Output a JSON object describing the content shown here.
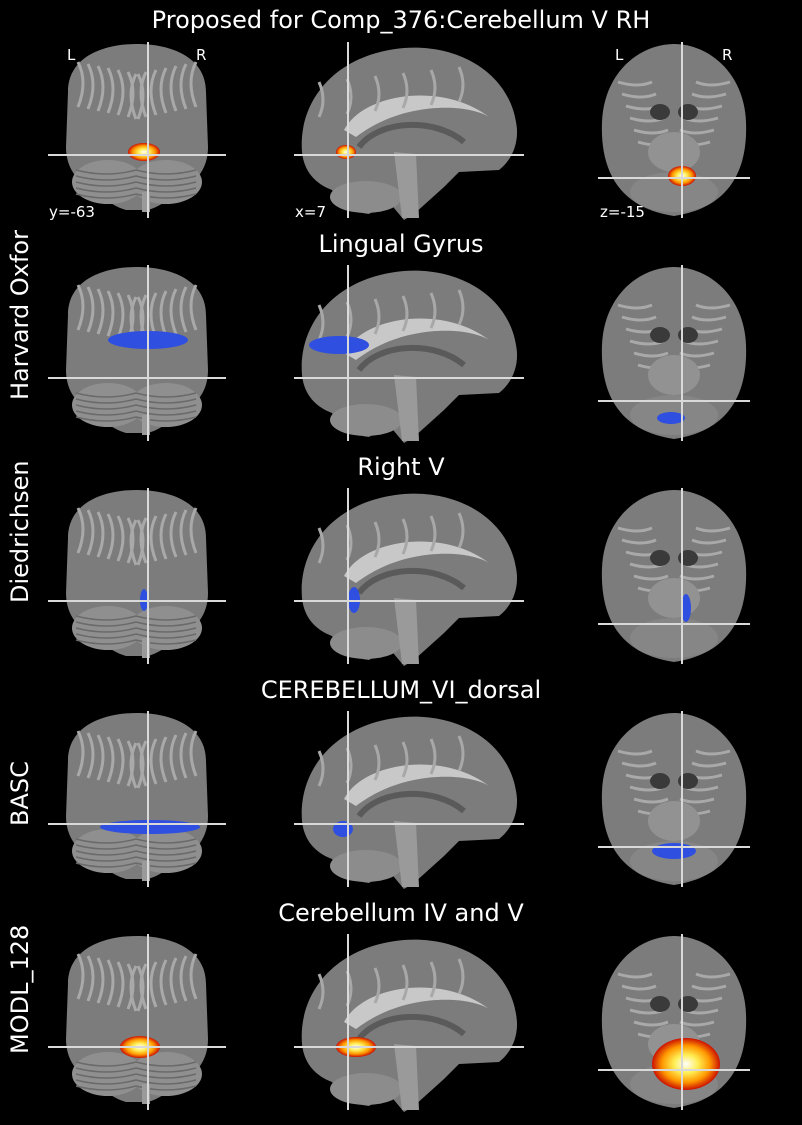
{
  "figure": {
    "title": "Proposed for Comp_376:Cerebellum V RH",
    "orientation": {
      "left": "L",
      "right": "R"
    },
    "coords": {
      "coronal": "y=-63",
      "sagittal": "x=7",
      "axial": "z=-15"
    },
    "colors": {
      "background": "#000000",
      "crosshair": "#d9d9d9",
      "atlas_blue": "#2f4fe0",
      "component_hot": "#ffcc33",
      "brain_gray": "#8a8a8a"
    },
    "views": [
      "coronal",
      "sagittal",
      "axial"
    ]
  },
  "rows": [
    {
      "atlas": "",
      "region": ""
    },
    {
      "atlas": "Harvard Oxford",
      "region": "Lingual Gyrus"
    },
    {
      "atlas": "Diedrichsen",
      "region": "Right V"
    },
    {
      "atlas": "BASC",
      "region": "CEREBELLUM_VI_dorsal"
    },
    {
      "atlas": "MODL_128",
      "region": "Cerebellum IV and V"
    }
  ]
}
